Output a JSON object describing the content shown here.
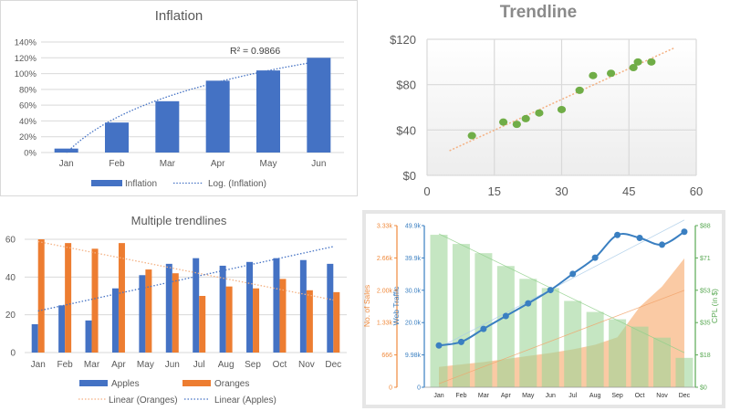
{
  "chart_data": [
    {
      "type": "bar",
      "title": "Inflation",
      "categories": [
        "Jan",
        "Feb",
        "Mar",
        "Apr",
        "May",
        "Jun"
      ],
      "series": [
        {
          "name": "Inflation",
          "values": [
            5,
            38,
            65,
            91,
            104,
            120
          ],
          "color": "#4472C4"
        }
      ],
      "ylim": [
        0,
        140
      ],
      "yticks": [
        "0%",
        "20%",
        "40%",
        "60%",
        "80%",
        "100%",
        "120%",
        "140%"
      ],
      "trendline": {
        "type": "logarithmic",
        "name": "Log. (Inflation)",
        "r2_label": "R² = 0.9866"
      },
      "grid": true,
      "legend": "bottom"
    },
    {
      "type": "scatter",
      "title": "Trendline",
      "points": [
        [
          10,
          35
        ],
        [
          17,
          47
        ],
        [
          20,
          45
        ],
        [
          22,
          50
        ],
        [
          25,
          55
        ],
        [
          30,
          58
        ],
        [
          34,
          75
        ],
        [
          37,
          88
        ],
        [
          41,
          90
        ],
        [
          46,
          95
        ],
        [
          47,
          100
        ],
        [
          50,
          100
        ]
      ],
      "xlim": [
        0,
        60
      ],
      "ylim": [
        0,
        120
      ],
      "xticks": [
        "0",
        "15",
        "30",
        "45",
        "60"
      ],
      "yticks": [
        "$0",
        "$40",
        "$80",
        "$120"
      ],
      "trendline": {
        "type": "linear",
        "color": "#F4B183"
      },
      "point_color": "#70AD47",
      "grid": true
    },
    {
      "type": "bar",
      "title": "Multiple trendlines",
      "categories": [
        "Jan",
        "Feb",
        "Mar",
        "Apr",
        "May",
        "Jun",
        "Jul",
        "Aug",
        "Sep",
        "Oct",
        "Nov",
        "Dec"
      ],
      "series": [
        {
          "name": "Apples",
          "values": [
            15,
            25,
            17,
            34,
            41,
            47,
            50,
            46,
            48,
            50,
            49,
            47
          ],
          "color": "#4472C4"
        },
        {
          "name": "Oranges",
          "values": [
            60,
            58,
            55,
            58,
            44,
            42,
            30,
            35,
            34,
            39,
            33,
            32
          ],
          "color": "#ED7D31"
        }
      ],
      "trendlines": [
        {
          "name": "Linear (Oranges)",
          "series": "Oranges"
        },
        {
          "name": "Linear (Apples)",
          "series": "Apples"
        }
      ],
      "ylim": [
        0,
        60
      ],
      "yticks": [
        "0",
        "20",
        "40",
        "60"
      ],
      "grid": true,
      "legend": "bottom"
    },
    {
      "type": "combo",
      "categories": [
        "Jan",
        "Feb",
        "Mar",
        "Apr",
        "May",
        "Jun",
        "Jul",
        "Aug",
        "Sep",
        "Oct",
        "Nov",
        "Dec"
      ],
      "series": [
        {
          "name": "No. of Sales",
          "type": "area",
          "values": [
            419,
            470,
            520,
            580,
            645,
            705,
            780,
            875,
            1030,
            1655,
            2075,
            2655
          ],
          "color": "#F8B886",
          "ylim": [
            0,
            3330
          ],
          "ticks": [
            "0",
            "666",
            "1.33k",
            "2.00k",
            "2.66k",
            "3.33k"
          ]
        },
        {
          "name": "Web Traffic",
          "type": "line",
          "values": [
            12900,
            14000,
            18000,
            22000,
            25900,
            30000,
            35000,
            40000,
            47000,
            46100,
            44000,
            48000
          ],
          "color": "#3A7FC1",
          "ylim": [
            0,
            49900
          ],
          "ticks": [
            "0",
            "9.98k",
            "20.0k",
            "30.0k",
            "39.9k",
            "49.9k"
          ]
        },
        {
          "name": "CPL (in $)",
          "type": "bar",
          "values": [
            83,
            78,
            73,
            66,
            59,
            54,
            47,
            41,
            37,
            33,
            27,
            16
          ],
          "color": "#9ED69A",
          "ylim": [
            0,
            88
          ],
          "ticks": [
            "$0",
            "$18",
            "$35",
            "$53",
            "$71",
            "$88"
          ]
        }
      ],
      "trendlines": "linear per series",
      "grid": false
    }
  ]
}
